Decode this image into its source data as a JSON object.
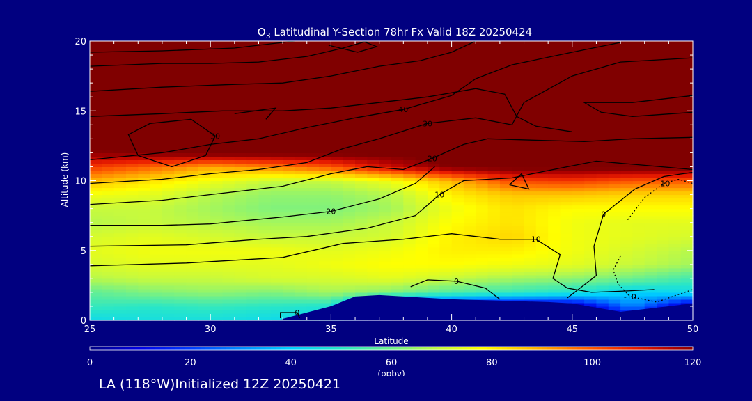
{
  "chart_data": {
    "type": "heatmap",
    "title_prefix": "O",
    "title_sub": "3",
    "title_rest": " Latitudinal Y-Section 78hr  Fx Valid 18Z 20250424",
    "xlabel": "Latitude",
    "ylabel": "Altitude (km)",
    "xlim": [
      25,
      50
    ],
    "ylim": [
      0,
      20
    ],
    "xticks": [
      25,
      30,
      35,
      40,
      45,
      50
    ],
    "yticks": [
      0,
      5,
      10,
      15,
      20
    ],
    "colorbar": {
      "label": "(ppbv)",
      "range": [
        0,
        120
      ],
      "ticks": [
        0,
        20,
        40,
        60,
        80,
        100,
        120
      ]
    },
    "grid": {
      "lats": [
        25,
        27.5,
        30,
        32.5,
        35,
        37.5,
        40,
        42.5,
        45,
        47.5,
        50
      ],
      "alts": [
        0,
        1,
        2,
        3,
        4,
        5,
        6,
        7,
        8,
        9,
        10,
        11,
        12,
        13,
        14,
        15,
        16,
        17,
        18,
        19,
        20
      ],
      "ozone_ppbv": [
        [
          44,
          46,
          46,
          44,
          42,
          0,
          0,
          0,
          0,
          0,
          0
        ],
        [
          52,
          50,
          52,
          50,
          48,
          0,
          0,
          0,
          0,
          30,
          0
        ],
        [
          58,
          62,
          64,
          62,
          66,
          62,
          56,
          52,
          48,
          40,
          44
        ],
        [
          68,
          70,
          70,
          72,
          72,
          74,
          70,
          66,
          64,
          60,
          54
        ],
        [
          72,
          74,
          74,
          74,
          76,
          78,
          78,
          76,
          74,
          70,
          66
        ],
        [
          74,
          76,
          76,
          76,
          74,
          76,
          80,
          80,
          76,
          72,
          68
        ],
        [
          72,
          74,
          72,
          70,
          70,
          72,
          80,
          84,
          76,
          74,
          72
        ],
        [
          68,
          70,
          68,
          66,
          66,
          70,
          78,
          82,
          76,
          74,
          74
        ],
        [
          70,
          70,
          66,
          62,
          62,
          66,
          76,
          82,
          78,
          78,
          78
        ],
        [
          76,
          74,
          68,
          64,
          64,
          68,
          80,
          86,
          86,
          84,
          84
        ],
        [
          88,
          82,
          76,
          70,
          70,
          76,
          88,
          102,
          104,
          100,
          100
        ],
        [
          104,
          98,
          90,
          94,
          100,
          112,
          122,
          124,
          124,
          124,
          124
        ],
        [
          120,
          122,
          124,
          124,
          124,
          124,
          126,
          126,
          126,
          126,
          126
        ],
        [
          126,
          126,
          126,
          126,
          126,
          126,
          126,
          126,
          126,
          126,
          126
        ],
        [
          126,
          126,
          126,
          126,
          126,
          126,
          126,
          126,
          126,
          126,
          126
        ],
        [
          126,
          126,
          126,
          126,
          126,
          126,
          126,
          126,
          126,
          126,
          126
        ],
        [
          126,
          126,
          126,
          126,
          126,
          126,
          126,
          126,
          126,
          126,
          126
        ],
        [
          126,
          126,
          126,
          126,
          126,
          126,
          126,
          126,
          126,
          126,
          126
        ],
        [
          126,
          126,
          126,
          126,
          126,
          126,
          126,
          126,
          126,
          126,
          126
        ],
        [
          126,
          126,
          126,
          126,
          126,
          126,
          126,
          126,
          126,
          126,
          126
        ],
        [
          126,
          126,
          126,
          126,
          126,
          126,
          126,
          126,
          126,
          126,
          126
        ]
      ]
    },
    "terrain": [
      [
        25,
        0
      ],
      [
        32.9,
        0
      ],
      [
        33,
        0.1
      ],
      [
        35,
        1.0
      ],
      [
        36,
        1.7
      ],
      [
        37,
        1.8
      ],
      [
        38,
        1.7
      ],
      [
        39,
        1.6
      ],
      [
        40,
        1.5
      ],
      [
        42,
        1.4
      ],
      [
        44,
        1.3
      ],
      [
        45,
        1.2
      ],
      [
        47,
        0.6
      ],
      [
        48,
        0.8
      ],
      [
        50,
        1.2
      ],
      [
        50,
        0
      ]
    ],
    "contours": [
      {
        "label": "-10",
        "dashed": true,
        "points": [
          [
            47.3,
            7.2
          ],
          [
            48,
            8.8
          ],
          [
            48.8,
            9.8
          ],
          [
            49.4,
            10.1
          ],
          [
            50,
            9.8
          ]
        ]
      },
      {
        "label": "-10",
        "dashed": true,
        "points": [
          [
            47,
            4.6
          ],
          [
            46.7,
            3.6
          ],
          [
            46.9,
            2.6
          ],
          [
            47.4,
            1.7
          ],
          [
            48.5,
            1.3
          ],
          [
            49.5,
            1.9
          ],
          [
            50,
            2.2
          ]
        ]
      },
      {
        "label": "0",
        "dashed": false,
        "points": [
          [
            44.8,
            1.6
          ],
          [
            46,
            3.2
          ],
          [
            45.9,
            5.3
          ],
          [
            46.3,
            7.6
          ],
          [
            47.6,
            9.4
          ],
          [
            48.8,
            10.3
          ],
          [
            50,
            10.6
          ]
        ]
      },
      {
        "label": "0",
        "dashed": false,
        "points": [
          [
            38.3,
            2.4
          ],
          [
            39,
            2.9
          ],
          [
            40.2,
            2.8
          ],
          [
            41.4,
            2.3
          ],
          [
            42,
            1.5
          ]
        ]
      },
      {
        "label": "0",
        "dashed": false,
        "points": [
          [
            32.9,
            0.15
          ],
          [
            32.9,
            0.55
          ],
          [
            33.6,
            0.55
          ],
          [
            33.7,
            0.15
          ]
        ]
      },
      {
        "label": "10",
        "dashed": false,
        "points": [
          [
            25,
            3.9
          ],
          [
            29,
            4.1
          ],
          [
            33,
            4.5
          ],
          [
            35.5,
            5.5
          ],
          [
            38,
            5.8
          ],
          [
            40,
            6.2
          ],
          [
            42,
            5.8
          ],
          [
            43.5,
            5.8
          ],
          [
            44.5,
            4.7
          ],
          [
            44.2,
            3.0
          ],
          [
            44.8,
            2.3
          ],
          [
            45.8,
            2.0
          ],
          [
            47.3,
            2.1
          ],
          [
            48.4,
            2.2
          ]
        ]
      },
      {
        "label": "10",
        "dashed": false,
        "points": [
          [
            25,
            5.3
          ],
          [
            29,
            5.4
          ],
          [
            32,
            5.8
          ],
          [
            34,
            6.0
          ],
          [
            36.5,
            6.6
          ],
          [
            38.5,
            7.5
          ],
          [
            39.5,
            9.0
          ],
          [
            40.5,
            10.0
          ],
          [
            42.5,
            10.2
          ],
          [
            44.5,
            10.9
          ],
          [
            46,
            11.4
          ],
          [
            48,
            11.1
          ],
          [
            50,
            10.8
          ]
        ]
      },
      {
        "label": "20",
        "dashed": false,
        "points": [
          [
            25,
            6.8
          ],
          [
            28,
            6.8
          ],
          [
            30,
            6.9
          ],
          [
            33,
            7.4
          ],
          [
            35,
            7.8
          ],
          [
            37,
            8.7
          ],
          [
            38.5,
            9.8
          ],
          [
            39.3,
            11.0
          ]
        ]
      },
      {
        "label": "20",
        "dashed": false,
        "points": [
          [
            25,
            8.3
          ],
          [
            28,
            8.6
          ],
          [
            30,
            9.0
          ],
          [
            33,
            9.6
          ],
          [
            35,
            10.5
          ],
          [
            36.5,
            11.0
          ],
          [
            38,
            10.8
          ],
          [
            39.2,
            11.6
          ],
          [
            40.5,
            12.6
          ],
          [
            41.5,
            13.0
          ],
          [
            43.5,
            12.9
          ],
          [
            45.5,
            12.8
          ],
          [
            47.5,
            13.0
          ],
          [
            50,
            13.1
          ]
        ]
      },
      {
        "label": "30",
        "dashed": false,
        "points": [
          [
            25,
            9.8
          ],
          [
            28,
            10.1
          ],
          [
            30,
            10.5
          ],
          [
            32,
            10.8
          ],
          [
            34,
            11.3
          ],
          [
            35.5,
            12.3
          ],
          [
            37,
            13.0
          ],
          [
            39,
            14.1
          ],
          [
            41,
            14.5
          ],
          [
            42.5,
            14.0
          ],
          [
            43,
            15.6
          ],
          [
            45,
            17.5
          ],
          [
            47,
            18.5
          ],
          [
            50,
            18.8
          ]
        ]
      },
      {
        "label": "40",
        "dashed": false,
        "points": [
          [
            25,
            11.5
          ],
          [
            28,
            12.0
          ],
          [
            30,
            12.6
          ],
          [
            32,
            13.0
          ],
          [
            34,
            13.8
          ],
          [
            36,
            14.5
          ],
          [
            38,
            15.1
          ],
          [
            40,
            16.1
          ],
          [
            41,
            17.3
          ],
          [
            42.5,
            18.3
          ],
          [
            45,
            19.2
          ],
          [
            47,
            19.9
          ]
        ]
      },
      {
        "label": "30",
        "dashed": false,
        "points": [
          [
            27,
            11.8
          ],
          [
            26.6,
            13.3
          ],
          [
            27.5,
            14.1
          ],
          [
            29.2,
            14.4
          ],
          [
            30.2,
            13.2
          ],
          [
            29.8,
            11.8
          ],
          [
            28.4,
            11.0
          ],
          [
            27,
            11.8
          ]
        ]
      },
      {
        "label": "",
        "dashed": false,
        "points": [
          [
            25,
            14.6
          ],
          [
            28,
            14.8
          ],
          [
            30.5,
            15.0
          ],
          [
            33,
            15.0
          ],
          [
            35,
            15.2
          ],
          [
            37,
            15.6
          ],
          [
            39,
            16.0
          ],
          [
            41,
            16.6
          ],
          [
            42.2,
            16.2
          ],
          [
            42.7,
            14.6
          ],
          [
            43.5,
            13.9
          ],
          [
            45,
            13.5
          ]
        ]
      },
      {
        "label": "",
        "dashed": false,
        "points": [
          [
            25,
            16.4
          ],
          [
            28,
            16.7
          ],
          [
            31,
            16.9
          ],
          [
            33,
            17.0
          ],
          [
            35,
            17.5
          ],
          [
            37,
            18.2
          ],
          [
            38.7,
            18.6
          ],
          [
            40,
            19.2
          ],
          [
            41,
            20.0
          ]
        ]
      },
      {
        "label": "",
        "dashed": false,
        "points": [
          [
            25,
            18.2
          ],
          [
            28,
            18.4
          ],
          [
            30,
            18.4
          ],
          [
            32,
            18.5
          ],
          [
            34,
            18.9
          ],
          [
            35.5,
            19.5
          ],
          [
            36.5,
            20.0
          ]
        ]
      },
      {
        "label": "",
        "dashed": false,
        "points": [
          [
            25,
            19.2
          ],
          [
            28,
            19.3
          ],
          [
            31,
            19.5
          ],
          [
            33,
            19.9
          ],
          [
            33.5,
            20.0
          ]
        ]
      },
      {
        "label": "",
        "dashed": false,
        "points": [
          [
            34.9,
            19.7
          ],
          [
            36.1,
            19.2
          ],
          [
            36.9,
            19.6
          ],
          [
            36.3,
            20.0
          ]
        ]
      },
      {
        "label": "",
        "dashed": false,
        "points": [
          [
            50,
            16.1
          ],
          [
            47.5,
            15.6
          ],
          [
            46.4,
            15.6
          ],
          [
            45.5,
            15.6
          ],
          [
            46.2,
            14.9
          ],
          [
            47.5,
            14.6
          ],
          [
            50,
            14.9
          ]
        ]
      },
      {
        "label": "",
        "dashed": false,
        "points": [
          [
            31,
            14.8
          ],
          [
            32.7,
            15.2
          ],
          [
            32.3,
            14.4
          ]
        ]
      },
      {
        "label": "",
        "dashed": false,
        "points": [
          [
            42.4,
            9.7
          ],
          [
            42.9,
            10.5
          ],
          [
            43.2,
            9.4
          ],
          [
            42.4,
            9.7
          ]
        ]
      }
    ]
  },
  "footer_text": "LA (118°W)Initialized 12Z 20250421"
}
